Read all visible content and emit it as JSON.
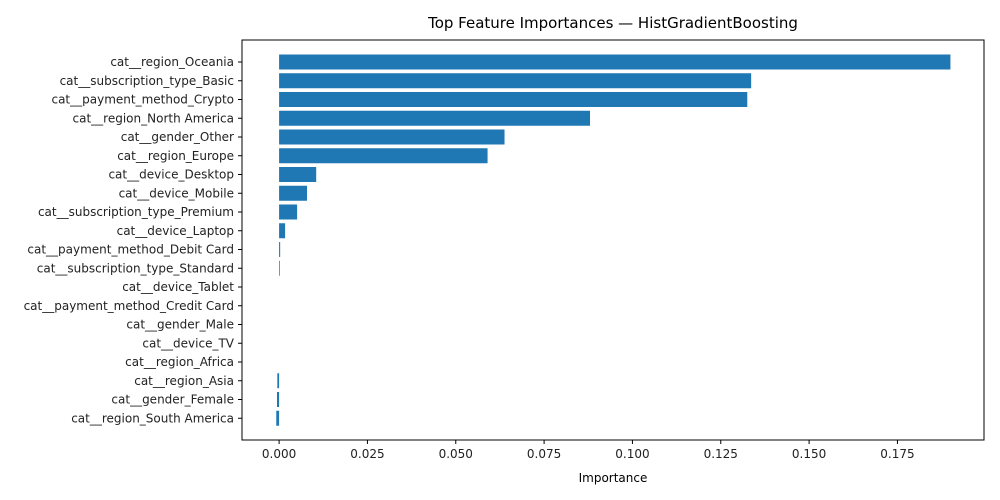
{
  "chart_data": {
    "type": "bar",
    "orientation": "horizontal",
    "title": "Top Feature Importances — HistGradientBoosting",
    "xlabel": "Importance",
    "ylabel": "",
    "xlim": [
      -0.0105,
      0.1995
    ],
    "xticks": [
      0.0,
      0.025,
      0.05,
      0.075,
      0.1,
      0.125,
      0.15,
      0.175
    ],
    "xtick_labels": [
      "0.000",
      "0.025",
      "0.050",
      "0.075",
      "0.100",
      "0.125",
      "0.150",
      "0.175"
    ],
    "grid": false,
    "bar_color": "#1f77b4",
    "categories": [
      "cat__region_Oceania",
      "cat__subscription_type_Basic",
      "cat__payment_method_Crypto",
      "cat__region_North America",
      "cat__gender_Other",
      "cat__region_Europe",
      "cat__device_Desktop",
      "cat__device_Mobile",
      "cat__subscription_type_Premium",
      "cat__device_Laptop",
      "cat__payment_method_Debit Card",
      "cat__subscription_type_Standard",
      "cat__device_Tablet",
      "cat__payment_method_Credit Card",
      "cat__gender_Male",
      "cat__device_TV",
      "cat__region_Africa",
      "cat__region_Asia",
      "cat__gender_Female",
      "cat__region_South America"
    ],
    "values": [
      0.19,
      0.1336,
      0.1325,
      0.088,
      0.0638,
      0.059,
      0.0105,
      0.0079,
      0.0051,
      0.0017,
      0.0003,
      0.0002,
      0.0,
      0.0,
      0.0,
      0.0,
      0.0,
      -0.0005,
      -0.0006,
      -0.0008
    ]
  }
}
